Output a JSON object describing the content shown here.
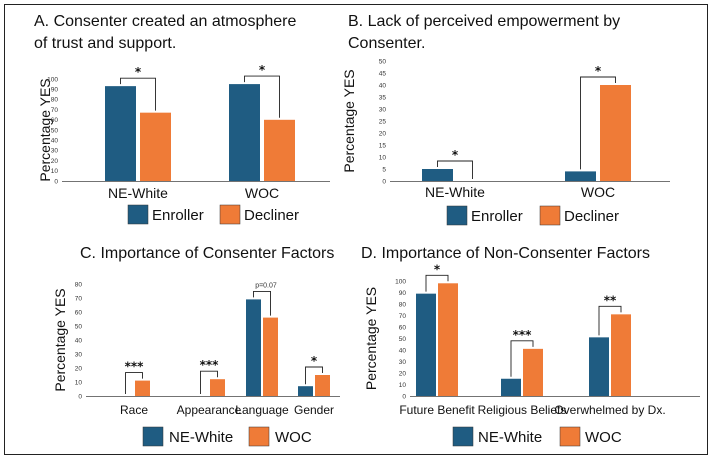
{
  "colors": {
    "enroller": "#1f5c82",
    "decliner": "#ef7b37",
    "axis": "#444444"
  },
  "chart_data": [
    {
      "id": "A",
      "type": "bar",
      "title_lines": [
        "A. Consenter created an atmosphere",
        "of trust and support."
      ],
      "ylabel": "Percentage YES",
      "ylim": [
        0,
        100
      ],
      "yticks": [
        0,
        10,
        20,
        30,
        40,
        50,
        60,
        70,
        80,
        90,
        100
      ],
      "categories": [
        "NE-White",
        "WOC"
      ],
      "series": [
        {
          "name": "Enroller",
          "values": [
            93,
            95
          ]
        },
        {
          "name": "Decliner",
          "values": [
            67,
            60
          ]
        }
      ],
      "significance": [
        "*",
        "*"
      ],
      "legend": [
        "Enroller",
        "Decliner"
      ]
    },
    {
      "id": "B",
      "type": "bar",
      "title_lines": [
        "B. Lack of perceived empowerment by",
        "Consenter."
      ],
      "ylabel": "Percentage YES",
      "ylim": [
        0,
        50
      ],
      "yticks": [
        0,
        5,
        10,
        15,
        20,
        25,
        30,
        35,
        40,
        45,
        50
      ],
      "categories": [
        "NE-White",
        "WOC"
      ],
      "series": [
        {
          "name": "Enroller",
          "values": [
            5,
            4
          ]
        },
        {
          "name": "Decliner",
          "values": [
            0,
            40
          ]
        }
      ],
      "significance": [
        "*",
        "*"
      ],
      "legend": [
        "Enroller",
        "Decliner"
      ]
    },
    {
      "id": "C",
      "type": "bar",
      "title_lines": [
        "C. Importance of Consenter Factors"
      ],
      "ylabel": "Percentage YES",
      "ylim": [
        0,
        80
      ],
      "yticks": [
        0,
        10,
        20,
        30,
        40,
        50,
        60,
        70,
        80
      ],
      "categories": [
        "Race",
        "Appearance",
        "Language",
        "Gender"
      ],
      "series": [
        {
          "name": "NE-White",
          "values": [
            0,
            0,
            69,
            7
          ]
        },
        {
          "name": "WOC",
          "values": [
            11,
            12,
            56,
            15
          ]
        }
      ],
      "significance": [
        "***",
        "***",
        "p=0.07",
        "*"
      ],
      "legend": [
        "NE-White",
        "WOC"
      ]
    },
    {
      "id": "D",
      "type": "bar",
      "title_lines": [
        "D. Importance of Non-Consenter Factors"
      ],
      "ylabel": "Percentage YES",
      "ylim": [
        0,
        100
      ],
      "yticks": [
        0,
        10,
        20,
        30,
        40,
        50,
        60,
        70,
        80,
        90,
        100
      ],
      "categories": [
        "Future Benefit",
        "Religious Beliefs",
        "Overwhelmed by Dx."
      ],
      "series": [
        {
          "name": "NE-White",
          "values": [
            89,
            15,
            51
          ]
        },
        {
          "name": "WOC",
          "values": [
            98,
            41,
            71
          ]
        }
      ],
      "significance": [
        "*",
        "***",
        "**"
      ],
      "legend": [
        "NE-White",
        "WOC"
      ]
    }
  ]
}
